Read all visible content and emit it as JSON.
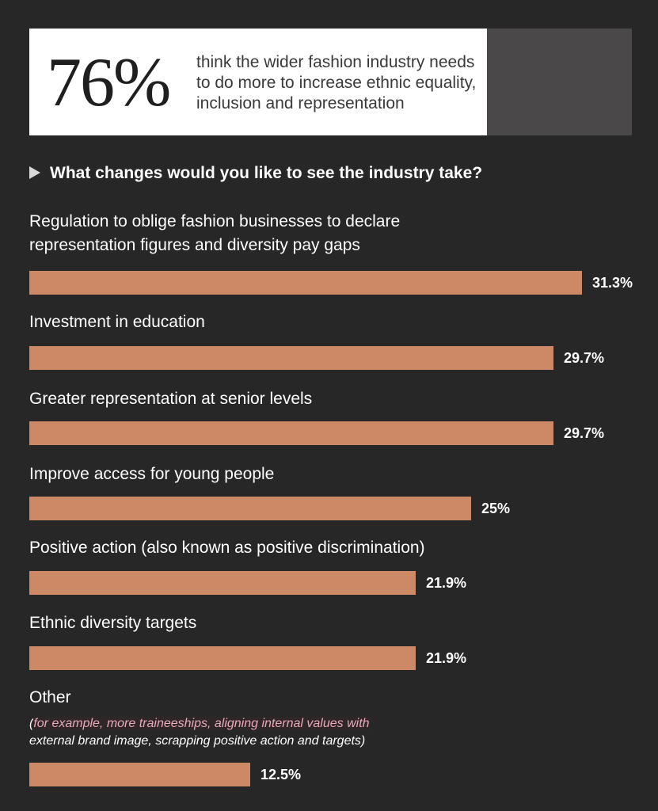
{
  "stat": {
    "number": "76%",
    "text": "think the wider fashion industry needs to do more to increase ethnic equality, inclusion and representation"
  },
  "chart_data": {
    "type": "bar",
    "orientation": "horizontal",
    "title": "What changes would you like to see the industry take?",
    "xlim": [
      0,
      31.3
    ],
    "unit": "%",
    "categories": [
      "Regulation to oblige fashion businesses to declare representation figures and diversity pay gaps",
      "Investment in education",
      "Greater representation at senior levels",
      "Improve access for young people",
      "Positive action (also known as positive discrimination)",
      "Ethnic diversity targets",
      "Other"
    ],
    "values": [
      31.3,
      29.7,
      29.7,
      25,
      21.9,
      21.9,
      12.5
    ],
    "value_labels": [
      "31.3%",
      "29.7%",
      "29.7%",
      "25%",
      "21.9%",
      "21.9%",
      "12.5%"
    ],
    "notes": {
      "other": {
        "open": "(",
        "highlight": "for example, more traineeships, aligning internal values with",
        "rest": "external brand image, scrapping positive action and targets)"
      }
    },
    "colors": {
      "bar": "#cd8865",
      "background": "#272727"
    }
  }
}
